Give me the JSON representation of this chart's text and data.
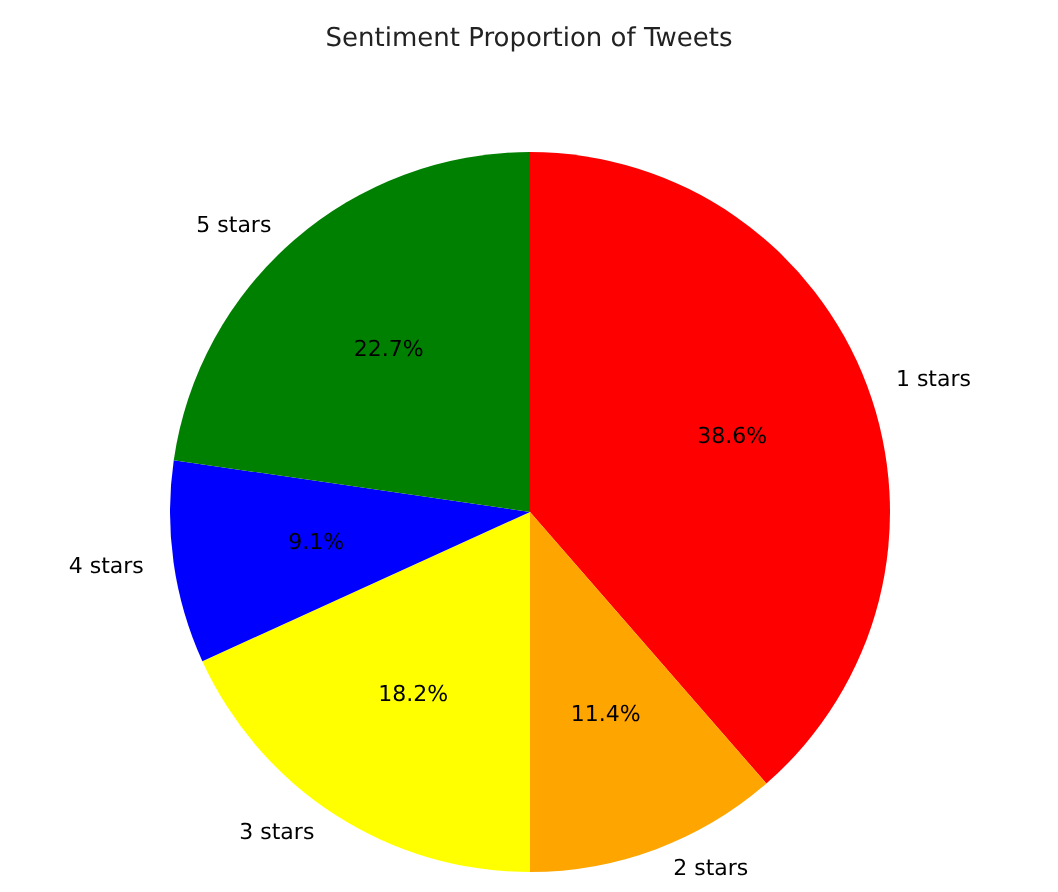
{
  "chart_data": {
    "type": "pie",
    "title": "Sentiment Proportion of Tweets",
    "categories": [
      "1 stars",
      "2 stars",
      "3 stars",
      "4 stars",
      "5 stars"
    ],
    "values": [
      38.6,
      11.4,
      18.2,
      9.1,
      22.7
    ],
    "colors": [
      "#ff0000",
      "#ffa500",
      "#ffff00",
      "#0000ff",
      "#008000"
    ],
    "value_labels": [
      "38.6%",
      "11.4%",
      "18.2%",
      "9.1%",
      "22.7%"
    ],
    "legend": false
  }
}
